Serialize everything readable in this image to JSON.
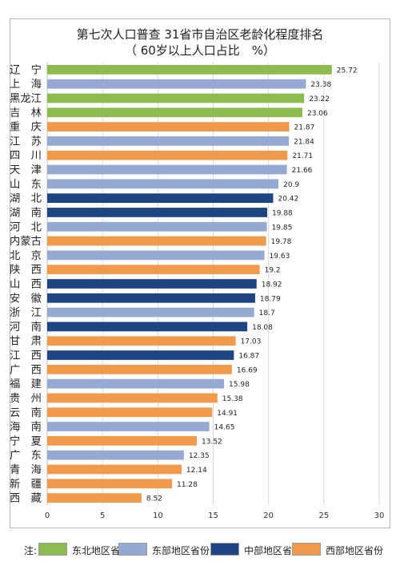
{
  "chart_data": {
    "type": "bar",
    "orientation": "horizontal",
    "title_lines": [
      "第七次人口普查 31省市自治区老龄化程度排名",
      "（ 60岁以上人口占比　%）"
    ],
    "categories": [
      "辽　宁",
      "上　海",
      "黑龙江",
      "吉　林",
      "重　庆",
      "江　苏",
      "四　川",
      "天　津",
      "山　东",
      "湖　北",
      "湖　南",
      "河　北",
      "内蒙古",
      "北　京",
      "陕　西",
      "山　西",
      "安　徽",
      "浙　江",
      "河　南",
      "甘　肃",
      "江　西",
      "广　西",
      "福　建",
      "贵　州",
      "云　南",
      "海　南",
      "宁　夏",
      "广　东",
      "青　海",
      "新　疆",
      "西　藏"
    ],
    "values": [
      25.72,
      23.38,
      23.22,
      23.06,
      21.87,
      21.84,
      21.71,
      21.66,
      20.9,
      20.42,
      19.88,
      19.85,
      19.78,
      19.63,
      19.2,
      18.92,
      18.79,
      18.7,
      18.08,
      17.03,
      16.87,
      16.69,
      15.98,
      15.38,
      14.91,
      14.65,
      13.52,
      12.35,
      12.14,
      11.28,
      8.52
    ],
    "value_labels": [
      "25.72",
      "23.38",
      "23.22",
      "23.06",
      "21.87",
      "21.84",
      "21.71",
      "21.66",
      "20.9",
      "20.42",
      "19.88",
      "19.85",
      "19.78",
      "19.63",
      "19.2",
      "18.92",
      "18.79",
      "18.7",
      "18.08",
      "17.03",
      "16.87",
      "16.69",
      "15.98",
      "15.38",
      "14.91",
      "14.65",
      "13.52",
      "12.35",
      "12.14",
      "11.28",
      "8.52"
    ],
    "groups": [
      "ne",
      "e",
      "ne",
      "ne",
      "w",
      "e",
      "w",
      "e",
      "e",
      "c",
      "c",
      "e",
      "w",
      "e",
      "w",
      "c",
      "c",
      "e",
      "c",
      "w",
      "c",
      "w",
      "e",
      "w",
      "w",
      "e",
      "w",
      "e",
      "w",
      "w",
      "w"
    ],
    "group_colors": {
      "ne": "#8dbb50",
      "e": "#96a9d3",
      "c": "#1e4582",
      "w": "#ef9a4c"
    },
    "xlim": [
      0,
      30
    ],
    "xticks": [
      "0",
      "5",
      "10",
      "15",
      "20",
      "25",
      "30"
    ],
    "xtick_values": [
      0,
      5,
      10,
      15,
      20,
      25,
      30
    ],
    "grid": "vertical"
  },
  "legend": {
    "note": "注:",
    "items": [
      {
        "label": "东北地区省份",
        "color": "#8dbb50"
      },
      {
        "label": "东部地区省份",
        "color": "#96a9d3"
      },
      {
        "label": "中部地区省份",
        "color": "#1e4582"
      },
      {
        "label": "西部地区省份",
        "color": "#ef9a4c"
      }
    ]
  }
}
